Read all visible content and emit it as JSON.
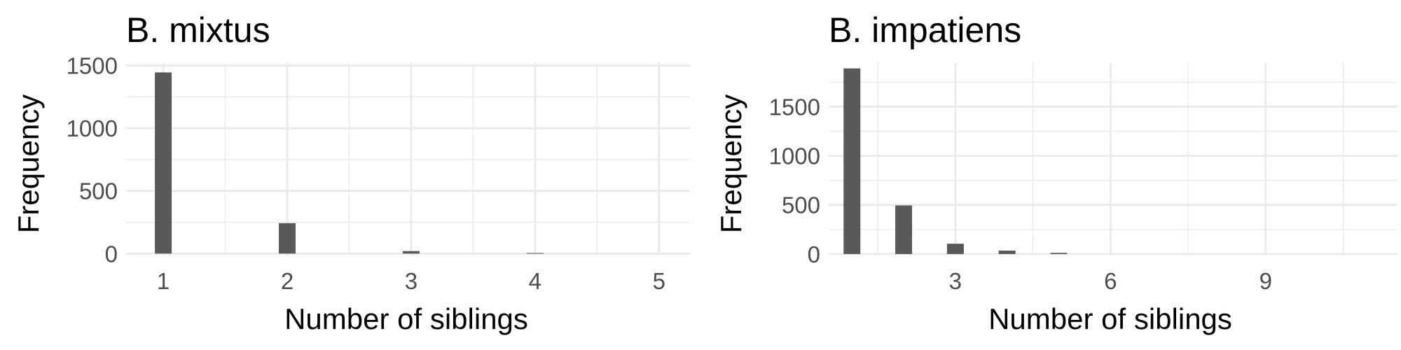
{
  "colors": {
    "bar": "#595959",
    "grid": "#ebebeb",
    "tick_text": "#4d4d4d",
    "text": "#000000"
  },
  "chart_data": [
    {
      "type": "bar",
      "title": "B. mixtus",
      "xlabel": "Number of siblings",
      "ylabel": "Frequency",
      "x": [
        1,
        2,
        3,
        4
      ],
      "values": [
        1445,
        243,
        20,
        5
      ],
      "xlim": [
        0.7,
        5.25
      ],
      "ylim": [
        -15,
        1520
      ],
      "xticks": [
        1,
        2,
        3,
        4,
        5
      ],
      "xtick_labels": [
        "1",
        "2",
        "3",
        "4",
        "5"
      ],
      "xminor": [
        1.5,
        2.5,
        3.5,
        4.5
      ],
      "yticks": [
        0,
        500,
        1000,
        1500
      ],
      "ytick_labels": [
        "0",
        "500",
        "1000",
        "1500"
      ],
      "yminor": [
        250,
        750,
        1250
      ],
      "grid": true
    },
    {
      "type": "bar",
      "title": "B. impatiens",
      "xlabel": "Number of siblings",
      "ylabel": "Frequency",
      "x": [
        1,
        2,
        3,
        4,
        5
      ],
      "values": [
        1890,
        495,
        105,
        35,
        12
      ],
      "xlim": [
        0.55,
        11.55
      ],
      "ylim": [
        -15,
        1945
      ],
      "xticks": [
        3,
        6,
        9
      ],
      "xtick_labels": [
        "3",
        "6",
        "9"
      ],
      "xminor": [
        1.5,
        4.5,
        7.5,
        10.5
      ],
      "yticks": [
        0,
        500,
        1000,
        1500
      ],
      "ytick_labels": [
        "0",
        "500",
        "1000",
        "1500"
      ],
      "yminor": [
        250,
        750,
        1250,
        1750
      ],
      "grid": true
    }
  ]
}
